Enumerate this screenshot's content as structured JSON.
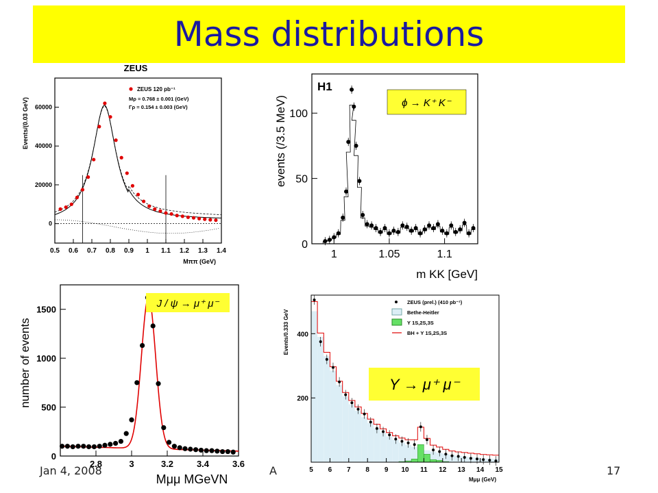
{
  "slide": {
    "title": "Mass distributions",
    "footer_date": "Jan 4, 2008",
    "footer_mid": "A",
    "page_number": "17"
  },
  "chart_data": [
    {
      "id": "rho",
      "type": "scatter",
      "title": "ZEUS",
      "xlabel": "Mππ (GeV)",
      "ylabel": "Events/(0.03 GeV)",
      "xlim": [
        0.5,
        1.4
      ],
      "ylim": [
        -10000,
        75000
      ],
      "xticks": [
        "0.5",
        "0.6",
        "0.7",
        "0.8",
        "0.9",
        "1",
        "1.1",
        "1.2",
        "1.3",
        "1.4"
      ],
      "yticks": [
        "0",
        "20000",
        "40000",
        "60000"
      ],
      "legend": {
        "entry": "ZEUS 120 pb⁻¹",
        "line2": "Mρ = 0.768  ± 0.001 (GeV)",
        "line3": "Γρ = 0.154  ± 0.003 (GeV)"
      },
      "colors": {
        "points": "#e00000"
      },
      "series": [
        {
          "points": [
            [
              0.53,
              7500
            ],
            [
              0.56,
              8500
            ],
            [
              0.59,
              10000
            ],
            [
              0.62,
              13500
            ],
            [
              0.65,
              17500
            ],
            [
              0.68,
              24000
            ],
            [
              0.71,
              33000
            ],
            [
              0.74,
              50000
            ],
            [
              0.77,
              62000
            ],
            [
              0.8,
              55000
            ],
            [
              0.83,
              43000
            ],
            [
              0.86,
              34000
            ],
            [
              0.89,
              26000
            ],
            [
              0.92,
              19500
            ],
            [
              0.95,
              15000
            ],
            [
              0.98,
              11500
            ],
            [
              1.01,
              9000
            ],
            [
              1.04,
              7500
            ],
            [
              1.07,
              6500
            ],
            [
              1.1,
              5500
            ],
            [
              1.13,
              5000
            ],
            [
              1.16,
              4200
            ],
            [
              1.19,
              3800
            ],
            [
              1.22,
              3300
            ],
            [
              1.25,
              3000
            ],
            [
              1.28,
              2600
            ],
            [
              1.31,
              2300
            ],
            [
              1.34,
              2000
            ],
            [
              1.37,
              1800
            ]
          ]
        }
      ],
      "vlines": [
        0.65,
        1.1
      ]
    },
    {
      "id": "phi",
      "type": "scatter",
      "title": "H1",
      "xlabel": "m KK [GeV]",
      "ylabel": "events (/3.5 MeV)",
      "xlim": [
        0.98,
        1.13
      ],
      "ylim": [
        0,
        130
      ],
      "xticks": [
        "1",
        "1.05",
        "1.1"
      ],
      "yticks": [
        "0",
        "50",
        "100"
      ],
      "annotation": "ϕ → K⁺ K⁻",
      "series": [
        {
          "points": [
            [
              0.992,
              2
            ],
            [
              0.996,
              3
            ],
            [
              1.0,
              5
            ],
            [
              1.004,
              8
            ],
            [
              1.008,
              20
            ],
            [
              1.011,
              40
            ],
            [
              1.013,
              78
            ],
            [
              1.016,
              118
            ],
            [
              1.018,
              105
            ],
            [
              1.02,
              75
            ],
            [
              1.023,
              48
            ],
            [
              1.026,
              22
            ],
            [
              1.03,
              15
            ],
            [
              1.034,
              14
            ],
            [
              1.038,
              12
            ],
            [
              1.042,
              9
            ],
            [
              1.046,
              12
            ],
            [
              1.05,
              8
            ],
            [
              1.054,
              10
            ],
            [
              1.058,
              9
            ],
            [
              1.062,
              14
            ],
            [
              1.066,
              13
            ],
            [
              1.07,
              10
            ],
            [
              1.074,
              12
            ],
            [
              1.078,
              8
            ],
            [
              1.082,
              11
            ],
            [
              1.086,
              14
            ],
            [
              1.09,
              12
            ],
            [
              1.094,
              15
            ],
            [
              1.098,
              10
            ],
            [
              1.102,
              8
            ],
            [
              1.106,
              14
            ],
            [
              1.11,
              9
            ],
            [
              1.114,
              11
            ],
            [
              1.118,
              16
            ],
            [
              1.122,
              8
            ],
            [
              1.126,
              12
            ]
          ]
        }
      ]
    },
    {
      "id": "jpsi",
      "type": "scatter",
      "title": "",
      "xlabel": "Mμμ MGeVN",
      "ylabel": "number of events",
      "xlim": [
        2.6,
        3.6
      ],
      "ylim": [
        0,
        1750
      ],
      "xticks": [
        "2.8",
        "3",
        "3.2",
        "3.4",
        "3.6"
      ],
      "yticks": [
        "0",
        "500",
        "1000",
        "1500"
      ],
      "annotation": "J / ψ → μ⁺ μ⁻",
      "colors": {
        "fit": "#e00000"
      },
      "series": [
        {
          "points": [
            [
              2.61,
              100
            ],
            [
              2.64,
              100
            ],
            [
              2.67,
              95
            ],
            [
              2.7,
              100
            ],
            [
              2.73,
              100
            ],
            [
              2.76,
              95
            ],
            [
              2.79,
              95
            ],
            [
              2.82,
              100
            ],
            [
              2.85,
              110
            ],
            [
              2.88,
              120
            ],
            [
              2.91,
              130
            ],
            [
              2.94,
              150
            ],
            [
              2.97,
              230
            ],
            [
              3.0,
              370
            ],
            [
              3.03,
              750
            ],
            [
              3.06,
              1130
            ],
            [
              3.09,
              1620
            ],
            [
              3.12,
              1330
            ],
            [
              3.15,
              740
            ],
            [
              3.18,
              290
            ],
            [
              3.21,
              140
            ],
            [
              3.24,
              100
            ],
            [
              3.27,
              85
            ],
            [
              3.3,
              75
            ],
            [
              3.33,
              70
            ],
            [
              3.36,
              65
            ],
            [
              3.39,
              60
            ],
            [
              3.42,
              55
            ],
            [
              3.45,
              55
            ],
            [
              3.48,
              50
            ],
            [
              3.51,
              45
            ],
            [
              3.54,
              45
            ],
            [
              3.57,
              40
            ]
          ]
        }
      ]
    },
    {
      "id": "upsilon",
      "type": "bar",
      "title": "",
      "xlabel": "Mμμ (GeV)",
      "ylabel": "Events/0.333 GeV",
      "xlim": [
        5,
        15
      ],
      "ylim": [
        0,
        520
      ],
      "xticks": [
        "5",
        "6",
        "7",
        "8",
        "9",
        "10",
        "11",
        "12",
        "13",
        "14",
        "15"
      ],
      "yticks": [
        "200",
        "400"
      ],
      "legend": [
        "ZEUS (prel.) (410 pb⁻¹)",
        "Bethe-Heitler",
        "Υ 1S,2S,3S",
        "BH + Υ 1S,2S,3S"
      ],
      "annotation": "Υ → μ⁺ μ⁻",
      "colors": {
        "bh": "#dceef6",
        "ups": "#66e066",
        "line": "#e00000"
      },
      "series": [
        {
          "name": "Bethe-Heitler",
          "values": [
            470,
            390,
            330,
            285,
            240,
            205,
            180,
            160,
            140,
            122,
            106,
            92,
            80,
            70,
            61,
            54,
            48,
            42,
            37,
            33,
            29,
            26,
            23,
            20,
            18,
            16,
            14,
            12,
            11,
            10
          ]
        },
        {
          "name": "Υ 1S,2S,3S",
          "values": [
            0,
            0,
            0,
            0,
            0,
            0,
            0,
            0,
            0,
            0,
            0,
            0,
            0,
            0,
            2,
            4,
            10,
            55,
            25,
            8,
            6,
            2,
            0,
            0,
            0,
            0,
            0,
            0,
            0,
            0
          ]
        },
        {
          "name": "ZEUS (prel.) (410 pb⁻¹)",
          "values": [
            505,
            375,
            320,
            295,
            250,
            210,
            185,
            165,
            150,
            125,
            105,
            95,
            85,
            72,
            65,
            60,
            55,
            110,
            70,
            38,
            33,
            25,
            20,
            18,
            15,
            12,
            10,
            8,
            6,
            4
          ]
        }
      ]
    }
  ]
}
